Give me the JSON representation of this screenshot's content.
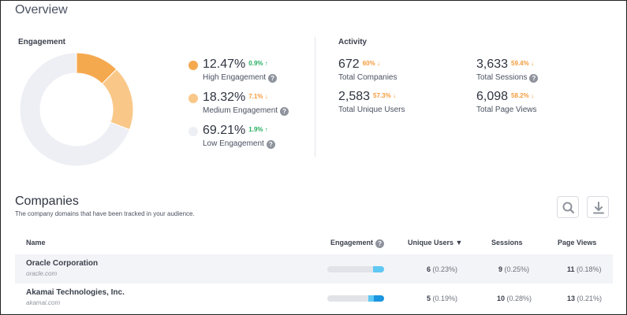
{
  "overview": {
    "title": "Overview"
  },
  "engagement": {
    "label": "Engagement",
    "segments": [
      {
        "value": "12.47%",
        "percent": 12.47,
        "delta": "0.9%",
        "direction": "up",
        "name": "High Engagement",
        "color": "#f5a94f"
      },
      {
        "value": "18.32%",
        "percent": 18.32,
        "delta": "7.1%",
        "direction": "down",
        "name": "Medium Engagement",
        "color": "#f9c889"
      },
      {
        "value": "69.21%",
        "percent": 69.21,
        "delta": "1.9%",
        "direction": "up",
        "name": "Low Engagement",
        "color": "#eeeff4"
      }
    ]
  },
  "activity": {
    "label": "Activity",
    "metrics": [
      {
        "value": "672",
        "delta": "60%",
        "name": "Total Companies",
        "help": false
      },
      {
        "value": "3,633",
        "delta": "59.4%",
        "name": "Total Sessions",
        "help": true
      },
      {
        "value": "2,583",
        "delta": "57.3%",
        "name": "Total Unique Users",
        "help": false
      },
      {
        "value": "6,098",
        "delta": "58.2%",
        "name": "Total Page Views",
        "help": false
      }
    ]
  },
  "companies": {
    "title": "Companies",
    "subtitle": "The company domains that have been tracked in your audience.",
    "columns": {
      "name": "Name",
      "engagement": "Engagement",
      "unique_users": "Unique Users",
      "sessions": "Sessions",
      "page_views": "Page Views"
    },
    "rows": [
      {
        "name": "Oracle Corporation",
        "domain": "oracle.com",
        "engagement_gray": 0.8,
        "engagement_light": 0.2,
        "engagement_dark": 0.0,
        "unique_users": "6",
        "unique_users_pct": "(0.23%)",
        "sessions": "9",
        "sessions_pct": "(0.25%)",
        "page_views": "11",
        "page_views_pct": "(0.18%)"
      },
      {
        "name": "Akamai Technologies, Inc.",
        "domain": "akamai.com",
        "engagement_gray": 0.72,
        "engagement_light": 0.1,
        "engagement_dark": 0.18,
        "unique_users": "5",
        "unique_users_pct": "(0.19%)",
        "sessions": "10",
        "sessions_pct": "(0.28%)",
        "page_views": "13",
        "page_views_pct": "(0.21%)"
      }
    ]
  },
  "colors": {
    "up": "#27ae60",
    "down": "#f59b3a",
    "bar_light": "#5fc8f3",
    "bar_dark": "#1a95e0"
  },
  "icons": {
    "help": "?",
    "search": "search-icon",
    "download": "download-icon",
    "sort": "caret-down-icon"
  }
}
